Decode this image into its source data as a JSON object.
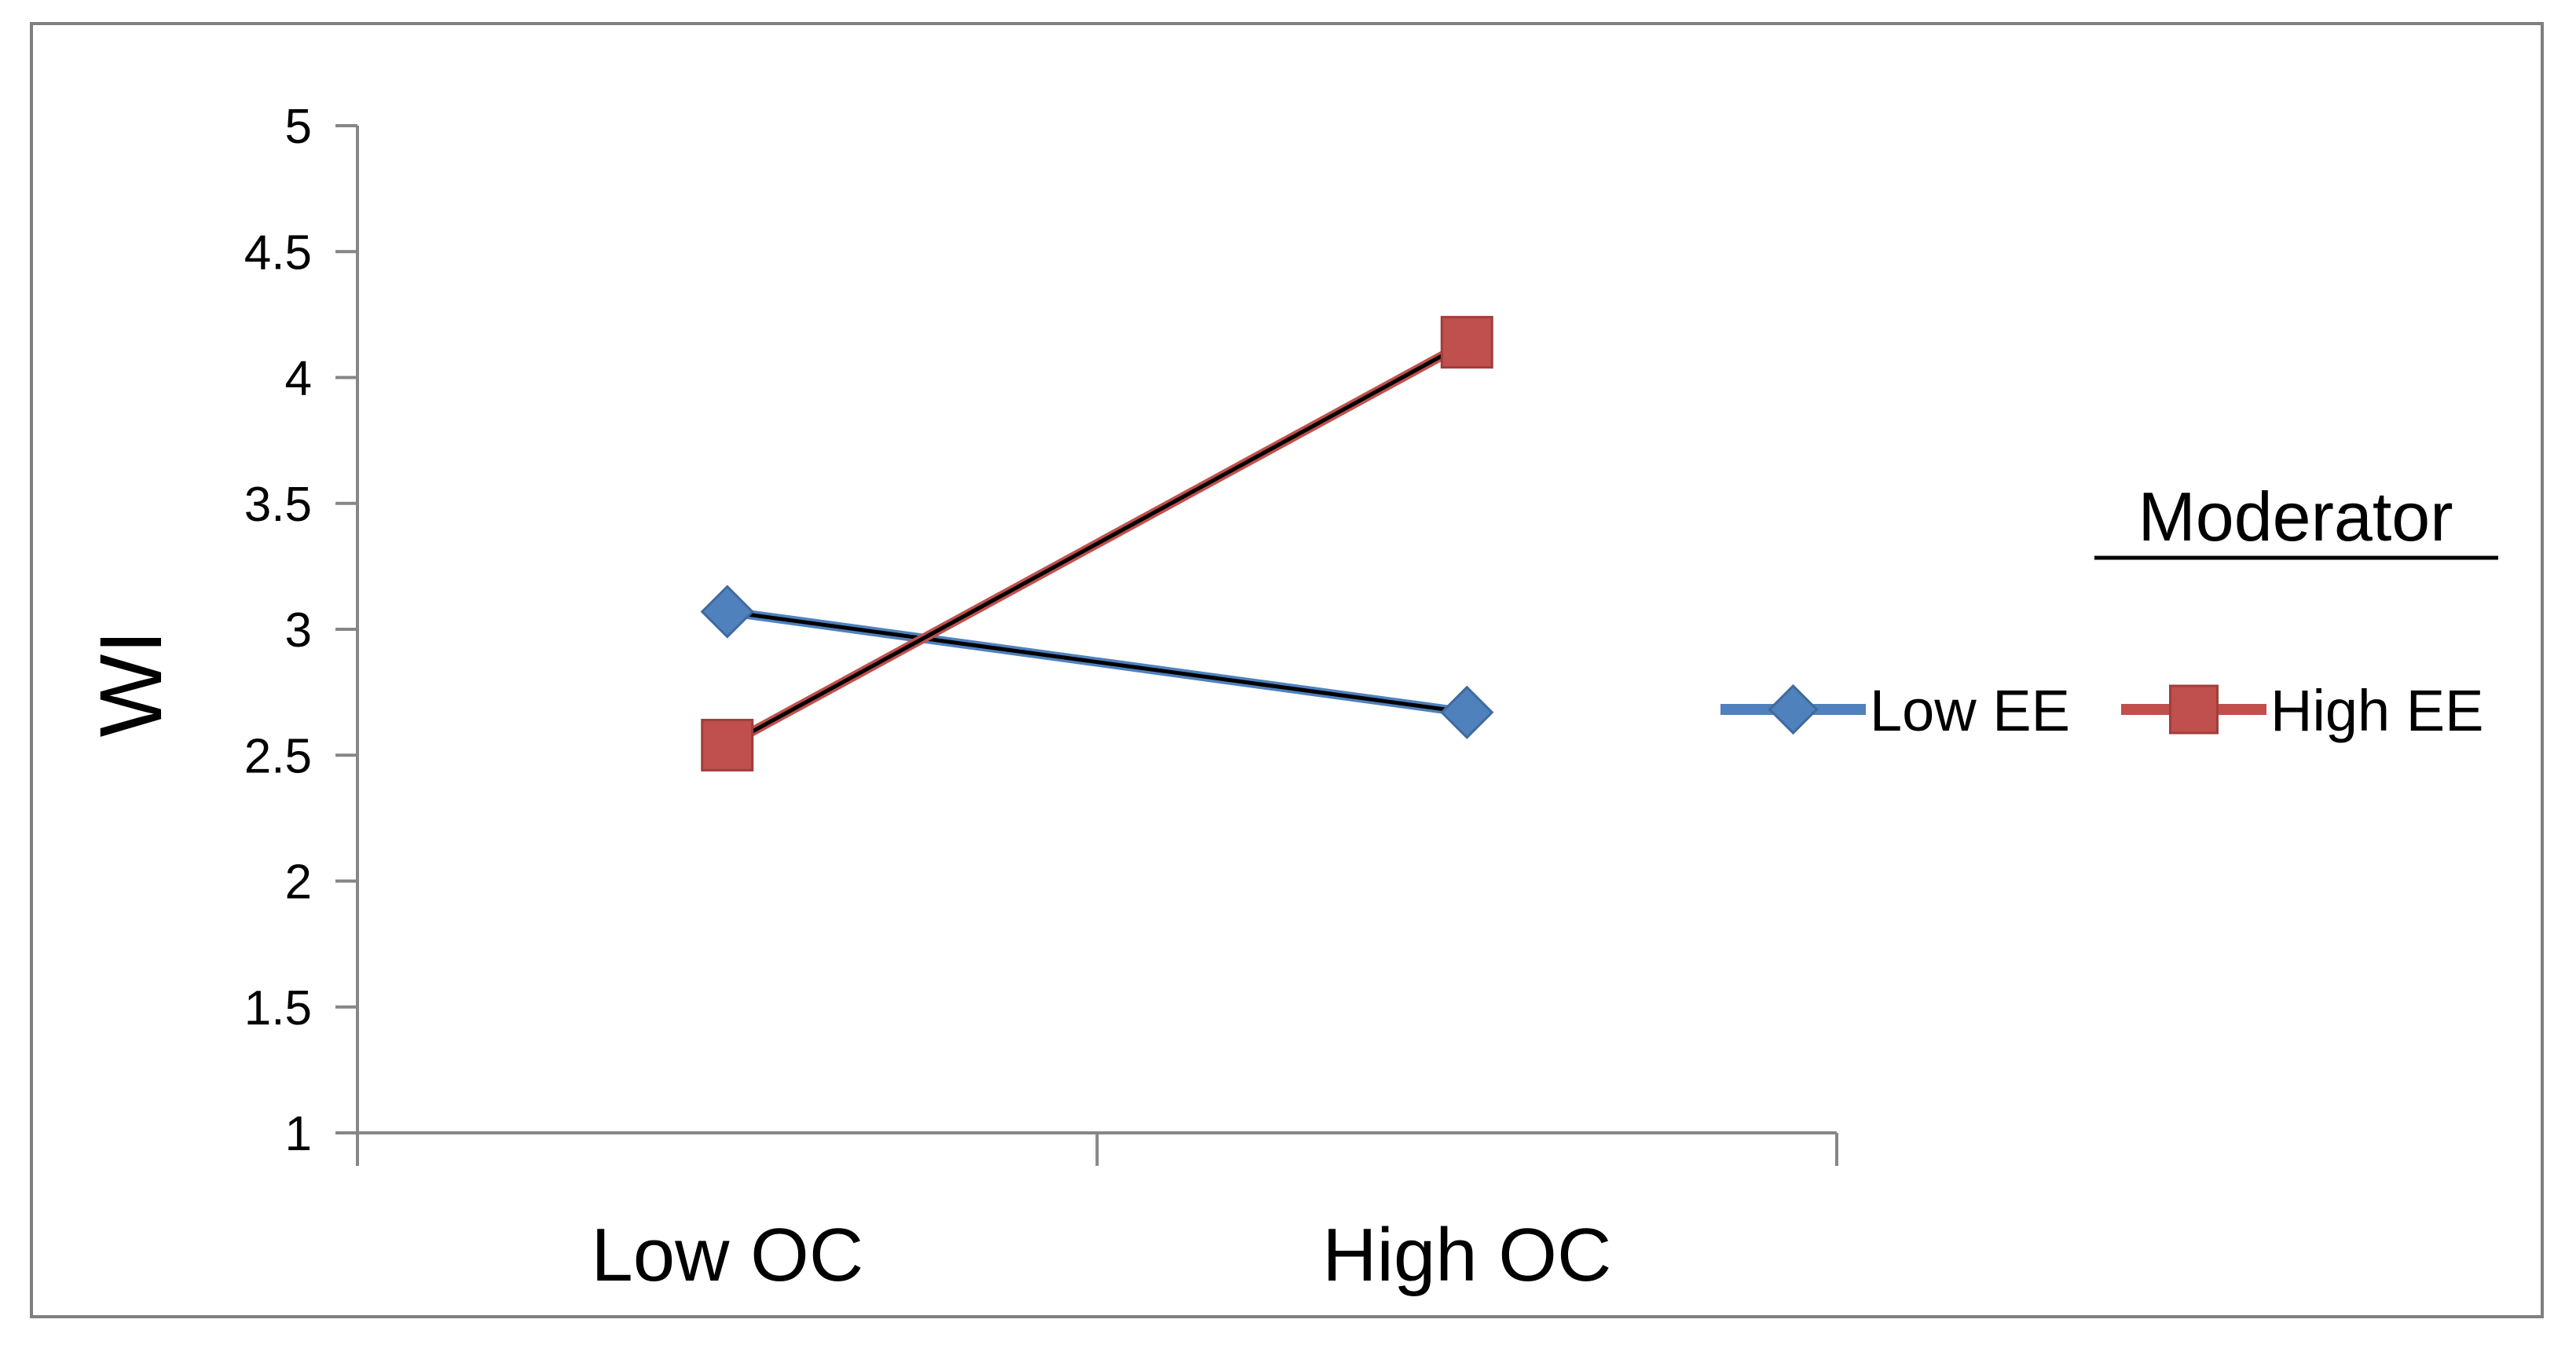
{
  "chart_data": {
    "type": "line",
    "title": "",
    "xlabel": "",
    "ylabel": "WI",
    "categories": [
      "Low OC",
      "High OC"
    ],
    "ylim": [
      1,
      5
    ],
    "yticks": [
      "1",
      "1.5",
      "2",
      "2.5",
      "3",
      "3.5",
      "4",
      "4.5",
      "5"
    ],
    "ytick_values": [
      1,
      1.5,
      2,
      2.5,
      3,
      3.5,
      4,
      4.5,
      5
    ],
    "grid": false,
    "legend": {
      "title": "Moderator",
      "placement": "right"
    },
    "series": [
      {
        "name": "Low EE",
        "values": [
          3.07,
          2.67
        ],
        "color": "#4F81BD",
        "marker": "diamond"
      },
      {
        "name": "High EE",
        "values": [
          2.54,
          4.14
        ],
        "color": "#C0504D",
        "marker": "square"
      }
    ],
    "trend_line_color": "#000000"
  }
}
